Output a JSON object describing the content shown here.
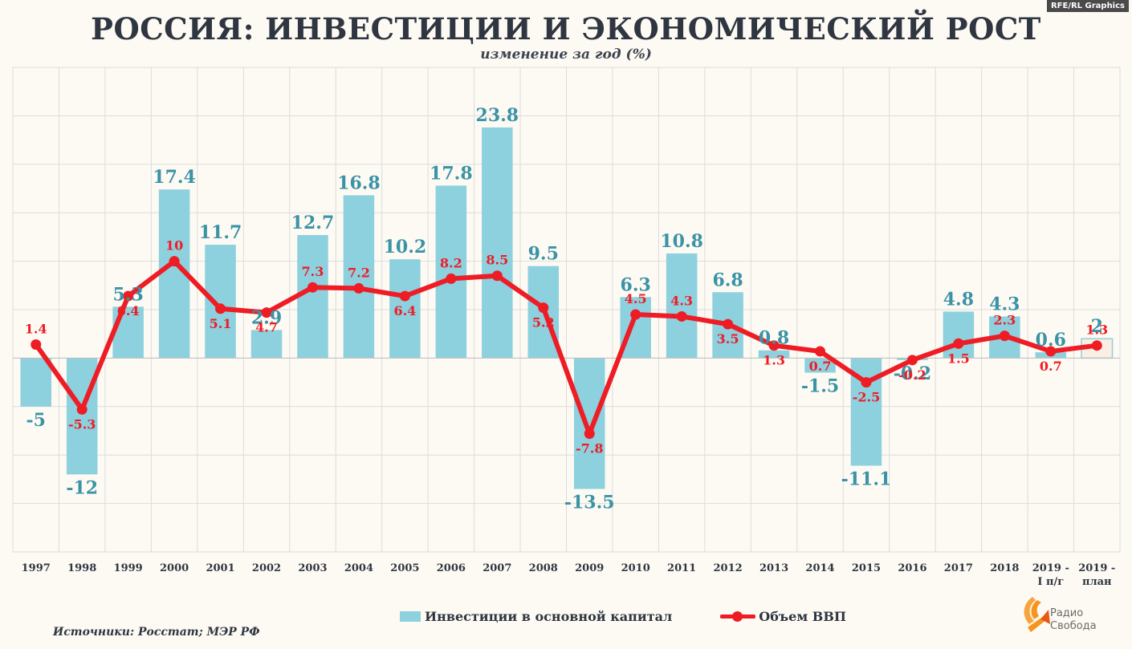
{
  "title": "РОССИЯ: ИНВЕСТИЦИИ И ЭКОНОМИЧЕСКИЙ РОСТ",
  "subtitle": "изменение за год (%)",
  "credit": "RFE/RL Graphics",
  "source": "Источники: Росстат; МЭР РФ",
  "logo": {
    "line1": "Радио",
    "line2": "Свобода"
  },
  "colors": {
    "investment": "#8dd0de",
    "investment_label": "#3a93a6",
    "gdp": "#ee1c25",
    "grid": "#dcdcdc"
  },
  "chart_data": {
    "type": "bar",
    "categories": [
      "1997",
      "1998",
      "1999",
      "2000",
      "2001",
      "2002",
      "2003",
      "2004",
      "2005",
      "2006",
      "2007",
      "2008",
      "2009",
      "2010",
      "2011",
      "2012",
      "2013",
      "2014",
      "2015",
      "2016",
      "2017",
      "2018",
      "2019 - I п/г",
      "2019 - план"
    ],
    "series": [
      {
        "name": "Инвестиции в основной капитал",
        "type": "bar",
        "values": [
          -5,
          -12,
          5.3,
          17.4,
          11.7,
          2.9,
          12.7,
          16.8,
          10.2,
          17.8,
          23.8,
          9.5,
          -13.5,
          6.3,
          10.8,
          6.8,
          0.8,
          -1.5,
          -11.1,
          -0.2,
          4.8,
          4.3,
          0.6,
          2
        ]
      },
      {
        "name": "Объем ВВП",
        "type": "line",
        "values": [
          1.4,
          -5.3,
          6.4,
          10,
          5.1,
          4.7,
          7.3,
          7.2,
          6.4,
          8.2,
          8.5,
          5.2,
          -7.8,
          4.5,
          4.3,
          3.5,
          1.3,
          0.7,
          -2.5,
          -0.2,
          1.5,
          2.3,
          0.7,
          1.3
        ]
      }
    ],
    "ylim": [
      -20,
      30
    ],
    "grid": true,
    "legend": "bottom"
  }
}
